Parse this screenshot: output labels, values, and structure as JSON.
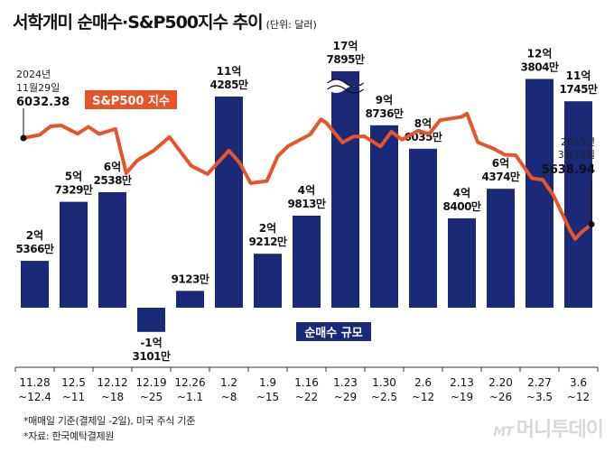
{
  "title": "서학개미 순매수·S&P500지수 추이",
  "unit": "(단위: 달러)",
  "footnotes": [
    "*매매일 기준(결제일 -2일), 미국 주식 기준",
    "*자료: 한국예탁결제원"
  ],
  "logo": "머니투데이",
  "logo_prefix": "MT",
  "colors": {
    "bar": "#1a2a78",
    "line": "#e8542a",
    "axis": "#333333"
  },
  "chart_data": [
    {
      "type": "bar",
      "title": "",
      "name": "순매수 규모",
      "categories": [
        "11.28\n~12.4",
        "12.5\n~11",
        "12.12\n~18",
        "12.19\n~25",
        "12.26\n~1.1",
        "1.2\n~8",
        "1.9\n~15",
        "1.16\n~22",
        "1.23\n~29",
        "1.30\n~2.5",
        "2.6\n~12",
        "2.13\n~19",
        "2.20\n~26",
        "2.27\n~3.5",
        "3.6\n~12"
      ],
      "values": [
        253660000,
        573290000,
        625380000,
        -131010000,
        91230000,
        1142850000,
        292120000,
        498130000,
        1778950000,
        987360000,
        860350000,
        484000000,
        643740000,
        1238040000,
        1117450000
      ],
      "value_labels": [
        [
          "2억",
          "5366만"
        ],
        [
          "5억",
          "7329만"
        ],
        [
          "6억",
          "2538만"
        ],
        [
          "-1억",
          "3101만"
        ],
        [
          "",
          "9123만"
        ],
        [
          "11억",
          "4285만"
        ],
        [
          "2억",
          "9212만"
        ],
        [
          "4억",
          "9813만"
        ],
        [
          "17억",
          "7895만"
        ],
        [
          "9억",
          "8736만"
        ],
        [
          "8억",
          "6035만"
        ],
        [
          "4억",
          "8400만"
        ],
        [
          "6억",
          "4374만"
        ],
        [
          "12억",
          "3804만"
        ],
        [
          "11억",
          "1745만"
        ]
      ],
      "axis_break": {
        "index": 8,
        "shown_value": 1280000000
      },
      "ylim": [
        -250000000,
        1300000000
      ]
    },
    {
      "type": "line",
      "name": "S&P500 지수",
      "x": [
        "2024-11-29",
        "2024-12-02",
        "2024-12-04",
        "2024-12-06",
        "2024-12-09",
        "2024-12-11",
        "2024-12-13",
        "2024-12-16",
        "2024-12-18",
        "2024-12-20",
        "2024-12-23",
        "2024-12-26",
        "2024-12-30",
        "2025-01-02",
        "2025-01-06",
        "2025-01-08",
        "2025-01-10",
        "2025-01-13",
        "2025-01-15",
        "2025-01-17",
        "2025-01-21",
        "2025-01-23",
        "2025-01-24",
        "2025-01-27",
        "2025-01-29",
        "2025-01-31",
        "2025-02-03",
        "2025-02-05",
        "2025-02-07",
        "2025-02-10",
        "2025-02-12",
        "2025-02-14",
        "2025-02-18",
        "2025-02-19",
        "2025-02-21",
        "2025-02-24",
        "2025-02-26",
        "2025-02-28",
        "2025-03-03",
        "2025-03-05",
        "2025-03-07",
        "2025-03-10",
        "2025-03-11",
        "2025-03-12",
        "2025-03-14"
      ],
      "values": [
        6032.38,
        6047,
        6086,
        6090,
        6052,
        6084,
        6051,
        6074,
        5872,
        5930,
        5974,
        6037,
        5906,
        5868,
        5975,
        5918,
        5827,
        5836,
        5950,
        5997,
        6049,
        6118,
        6101,
        6012,
        6039,
        6040,
        5994,
        6061,
        6025,
        6066,
        6051,
        6114,
        6129,
        6144,
        6013,
        5983,
        5956,
        5954,
        5849,
        5842,
        5770,
        5614,
        5572,
        5599,
        5638.94
      ],
      "labels": {
        "start": [
          "2024년",
          "11월29일",
          "6032.38"
        ],
        "end": [
          "2025년",
          "3월14일",
          "5638.94"
        ]
      },
      "ylim": [
        5500,
        6300
      ]
    }
  ],
  "legend": {
    "line": "S&P500 지수",
    "bar": "순매수 규모"
  }
}
